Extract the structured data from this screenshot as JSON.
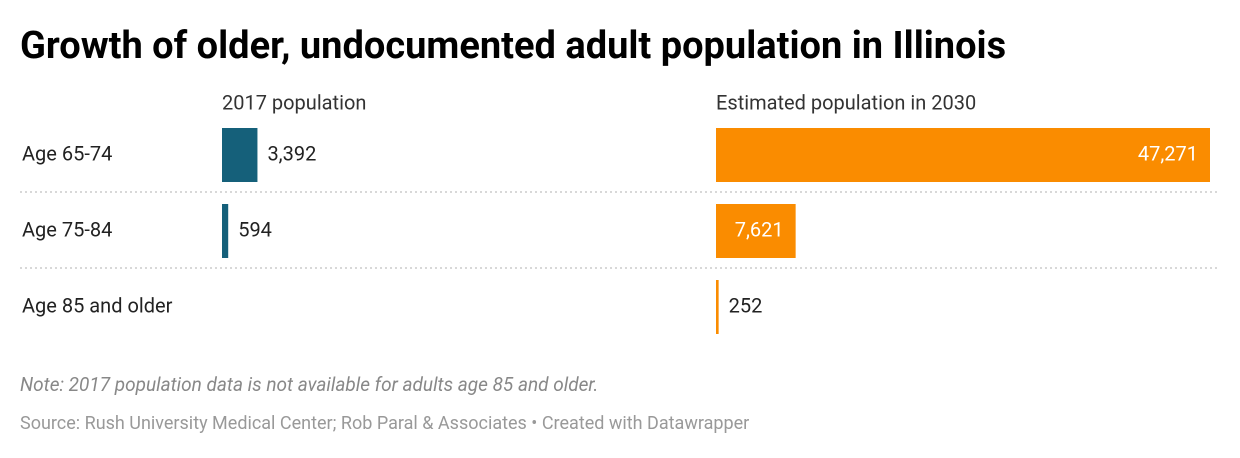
{
  "chart_data": {
    "type": "bar",
    "orientation": "horizontal",
    "title": "Growth of older, undocumented adult population in Illinois",
    "categories": [
      "Age 65-74",
      "Age 75-84",
      "Age 85 and older"
    ],
    "series": [
      {
        "name": "2017 population",
        "color": "#15607a",
        "values": [
          3392,
          594,
          null
        ],
        "value_labels": [
          "3,392",
          "594",
          null
        ]
      },
      {
        "name": "Estimated population in 2030",
        "color": "#fa8c00",
        "values": [
          47271,
          7621,
          252
        ],
        "value_labels": [
          "47,271",
          "7,621",
          "252"
        ]
      }
    ],
    "note": "Note: 2017 population data is not available for adults age 85 and older.",
    "source": "Source: Rush University Medical Center; Rob Paral & Associates • Created with Datawrapper"
  }
}
